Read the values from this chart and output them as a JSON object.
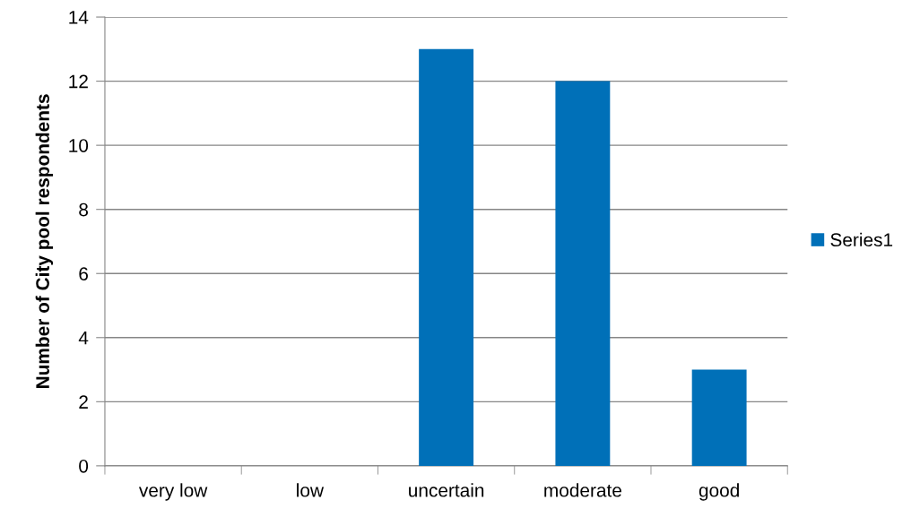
{
  "chart_data": {
    "type": "bar",
    "ylabel": "Number of City pool respondents",
    "categories": [
      "very low",
      "low",
      "uncertain",
      "moderate",
      "good"
    ],
    "series": [
      {
        "name": "Series1",
        "color": "#0070b8",
        "values": [
          0,
          0,
          13,
          12,
          3
        ]
      }
    ],
    "ylim": [
      0,
      14
    ],
    "yticks": [
      0,
      2,
      4,
      6,
      8,
      10,
      12,
      14
    ],
    "grid": "y",
    "legend": "right"
  }
}
